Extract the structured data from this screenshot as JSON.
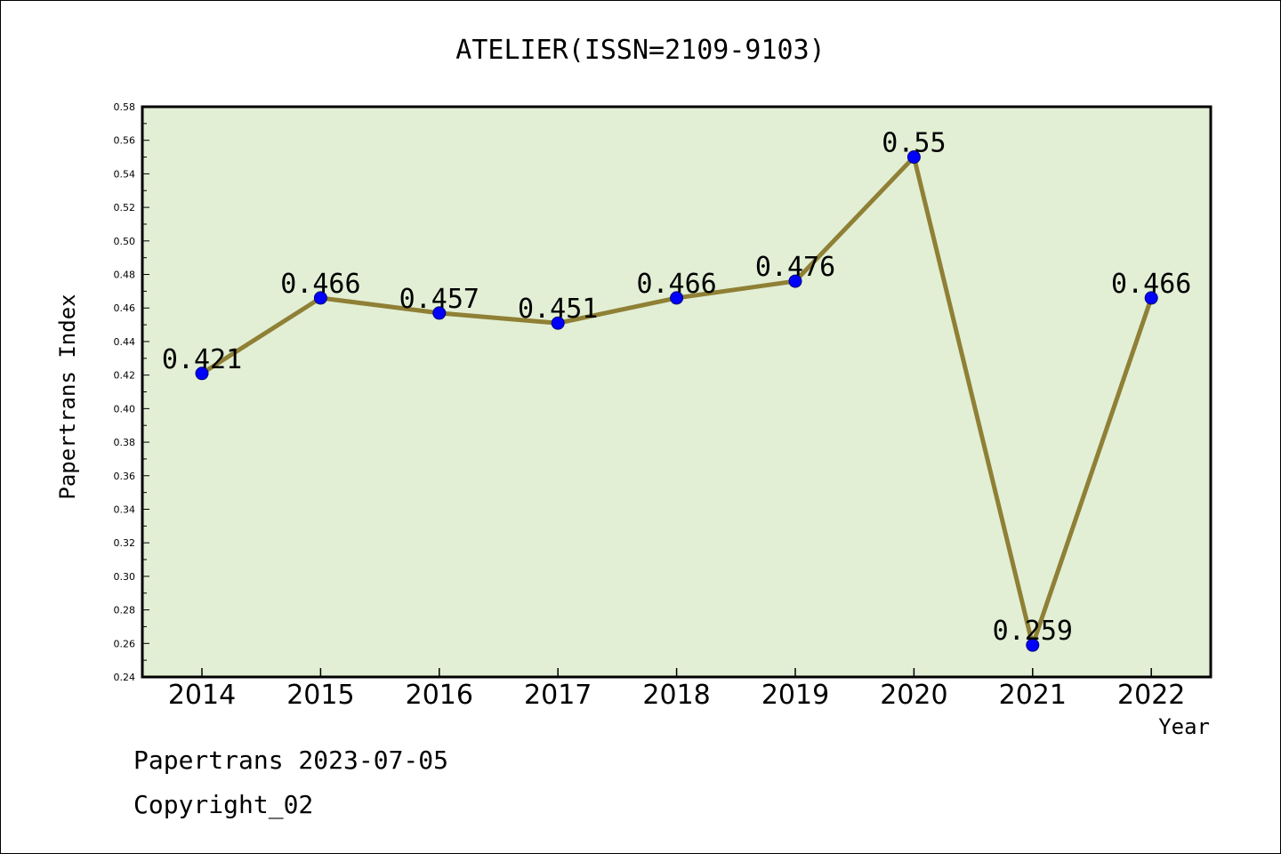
{
  "chart_data": {
    "type": "line",
    "title": "ATELIER(ISSN=2109-9103)",
    "xlabel": "Year",
    "ylabel": "Papertrans Index",
    "categories": [
      "2014",
      "2015",
      "2016",
      "2017",
      "2018",
      "2019",
      "2020",
      "2021",
      "2022"
    ],
    "series": [
      {
        "values": [
          0.421,
          0.466,
          0.457,
          0.451,
          0.466,
          0.476,
          0.55,
          0.259,
          0.466
        ],
        "labels": [
          "0.421",
          "0.466",
          "0.457",
          "0.451",
          "0.466",
          "0.476",
          "0.55",
          "0.259",
          "0.466"
        ]
      }
    ],
    "ylim": [
      0.24,
      0.58
    ],
    "yticks": [
      "0.24",
      "0.26",
      "0.28",
      "0.30",
      "0.32",
      "0.34",
      "0.36",
      "0.38",
      "0.40",
      "0.42",
      "0.44",
      "0.46",
      "0.48",
      "0.50",
      "0.52",
      "0.54",
      "0.56",
      "0.58"
    ],
    "grid": false,
    "colors": {
      "plot_background": "#e2efd5",
      "line": "#8f8035",
      "marker": "#0000ff"
    }
  },
  "footer": {
    "line1": "Papertrans 2023-07-05",
    "line2": "Copyright_02"
  }
}
